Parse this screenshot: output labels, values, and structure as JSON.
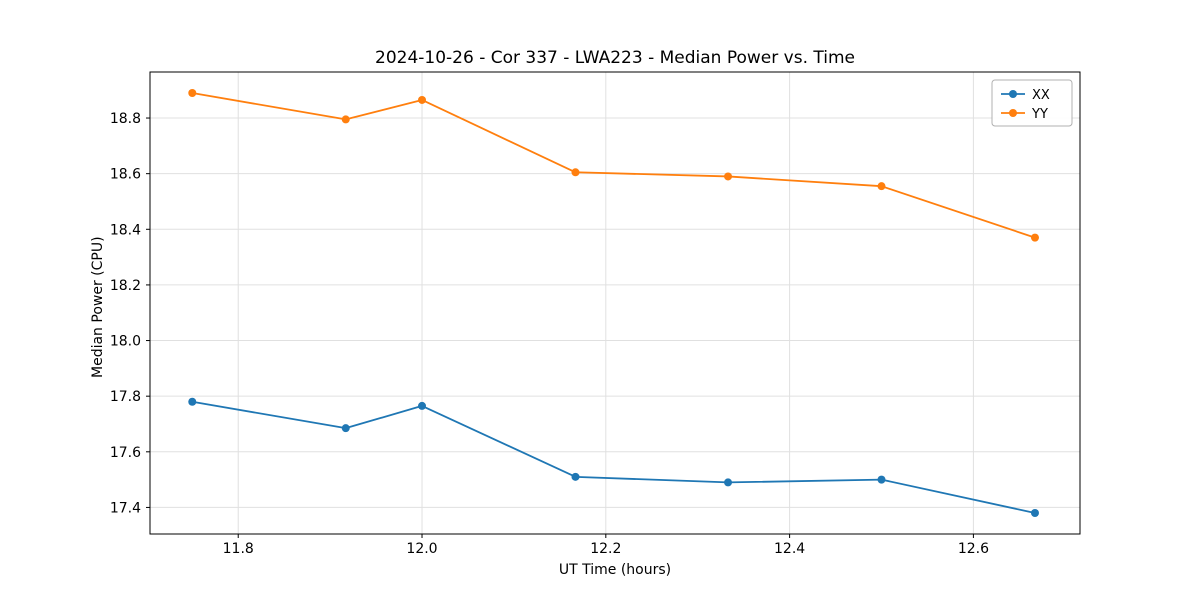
{
  "chart_data": {
    "type": "line",
    "title": "2024-10-26 - Cor 337 - LWA223 - Median Power vs. Time",
    "xlabel": "UT Time (hours)",
    "ylabel": "Median Power (CPU)",
    "xlim": [
      11.704,
      12.716
    ],
    "ylim": [
      17.3045,
      18.9655
    ],
    "xticks": [
      11.8,
      12.0,
      12.2,
      12.4,
      12.6
    ],
    "yticks": [
      17.4,
      17.6,
      17.8,
      18.0,
      18.2,
      18.4,
      18.6,
      18.8
    ],
    "grid": true,
    "legend_position": "upper right",
    "x": [
      11.75,
      11.917,
      12.0,
      12.167,
      12.333,
      12.5,
      12.667
    ],
    "series": [
      {
        "name": "XX",
        "color": "#1f77b4",
        "values": [
          17.78,
          17.685,
          17.765,
          17.51,
          17.49,
          17.5,
          17.38
        ]
      },
      {
        "name": "YY",
        "color": "#ff7f0e",
        "values": [
          18.89,
          18.795,
          18.865,
          18.605,
          18.59,
          18.555,
          18.37
        ]
      }
    ]
  }
}
